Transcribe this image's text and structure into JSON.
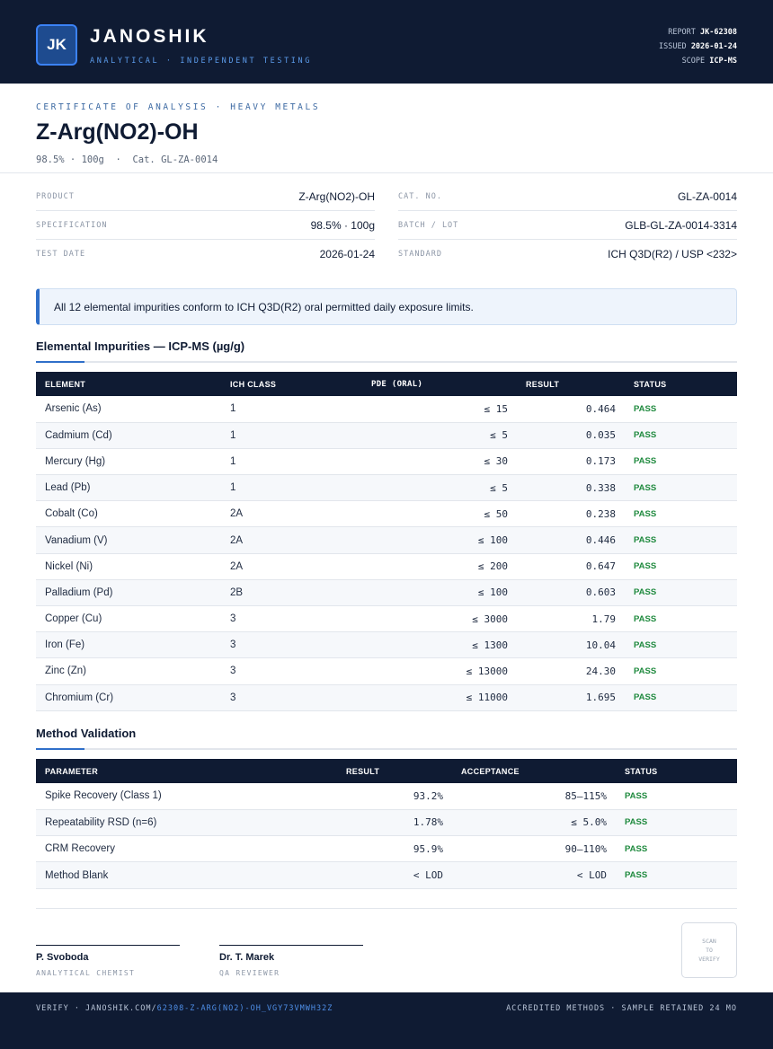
{
  "header": {
    "logo": "JK",
    "brand": "JANOSHIK",
    "tagline": "ANALYTICAL · INDEPENDENT TESTING",
    "report_label": "REPORT",
    "report_value": "JK-62308",
    "issued_label": "ISSUED",
    "issued_value": "2026-01-24",
    "scope_label": "SCOPE",
    "scope_value": "ICP-MS"
  },
  "title": {
    "certificate": "CERTIFICATE OF ANALYSIS · HEAVY METALS",
    "product": "Z-Arg(NO2)-OH",
    "subline": "98.5% · 100g  ·  Cat. GL-ZA-0014"
  },
  "info_left": [
    {
      "key": "PRODUCT",
      "value": "Z-Arg(NO2)-OH"
    },
    {
      "key": "SPECIFICATION",
      "value": "98.5% · 100g"
    },
    {
      "key": "TEST DATE",
      "value": "2026-01-24"
    }
  ],
  "info_right": [
    {
      "key": "CAT. NO.",
      "value": "GL-ZA-0014"
    },
    {
      "key": "BATCH / LOT",
      "value": "GLB-GL-ZA-0014-3314"
    },
    {
      "key": "STANDARD",
      "value": "ICH Q3D(R2) / USP <232>"
    }
  ],
  "notice": "All 12 elemental impurities conform to ICH Q3D(R2) oral permitted daily exposure limits.",
  "impurities": {
    "title": "Elemental Impurities — ICP-MS (µg/g)",
    "columns": [
      "ELEMENT",
      "ICH CLASS",
      "PDE (ORAL)",
      "RESULT",
      "STATUS"
    ],
    "rows": [
      {
        "element": "Arsenic (As)",
        "class": "1",
        "pde": "≤ 15",
        "result": "0.464",
        "status": "PASS"
      },
      {
        "element": "Cadmium (Cd)",
        "class": "1",
        "pde": "≤ 5",
        "result": "0.035",
        "status": "PASS"
      },
      {
        "element": "Mercury (Hg)",
        "class": "1",
        "pde": "≤ 30",
        "result": "0.173",
        "status": "PASS"
      },
      {
        "element": "Lead (Pb)",
        "class": "1",
        "pde": "≤ 5",
        "result": "0.338",
        "status": "PASS"
      },
      {
        "element": "Cobalt (Co)",
        "class": "2A",
        "pde": "≤ 50",
        "result": "0.238",
        "status": "PASS"
      },
      {
        "element": "Vanadium (V)",
        "class": "2A",
        "pde": "≤ 100",
        "result": "0.446",
        "status": "PASS"
      },
      {
        "element": "Nickel (Ni)",
        "class": "2A",
        "pde": "≤ 200",
        "result": "0.647",
        "status": "PASS"
      },
      {
        "element": "Palladium (Pd)",
        "class": "2B",
        "pde": "≤ 100",
        "result": "0.603",
        "status": "PASS"
      },
      {
        "element": "Copper (Cu)",
        "class": "3",
        "pde": "≤ 3000",
        "result": "1.79",
        "status": "PASS"
      },
      {
        "element": "Iron (Fe)",
        "class": "3",
        "pde": "≤ 1300",
        "result": "10.04",
        "status": "PASS"
      },
      {
        "element": "Zinc (Zn)",
        "class": "3",
        "pde": "≤ 13000",
        "result": "24.30",
        "status": "PASS"
      },
      {
        "element": "Chromium (Cr)",
        "class": "3",
        "pde": "≤ 11000",
        "result": "1.695",
        "status": "PASS"
      }
    ]
  },
  "validation": {
    "title": "Method Validation",
    "columns": [
      "PARAMETER",
      "RESULT",
      "ACCEPTANCE",
      "STATUS"
    ],
    "rows": [
      {
        "parameter": "Spike Recovery (Class 1)",
        "result": "93.2%",
        "acceptance": "85–115%",
        "status": "PASS"
      },
      {
        "parameter": "Repeatability RSD (n=6)",
        "result": "1.78%",
        "acceptance": "≤ 5.0%",
        "status": "PASS"
      },
      {
        "parameter": "CRM Recovery",
        "result": "95.9%",
        "acceptance": "90–110%",
        "status": "PASS"
      },
      {
        "parameter": "Method Blank",
        "result": "< LOD",
        "acceptance": "< LOD",
        "status": "PASS"
      }
    ]
  },
  "signatures": [
    {
      "name": "P. Svoboda",
      "role": "ANALYTICAL CHEMIST"
    },
    {
      "name": "Dr. T. Marek",
      "role": "QA REVIEWER"
    }
  ],
  "scan": [
    "SCAN",
    "TO",
    "VERIFY"
  ],
  "footer": {
    "verify_prefix": "VERIFY · JANOSHIK.COM/",
    "verify_link": "62308-Z-ARG(NO2)-OH_VGY73VMWH32Z",
    "right": "ACCREDITED METHODS · SAMPLE RETAINED 24 MO"
  },
  "colors": {
    "navy": "#0f1b33",
    "accent": "#2f6fc9",
    "pass": "#1f8a3e"
  }
}
